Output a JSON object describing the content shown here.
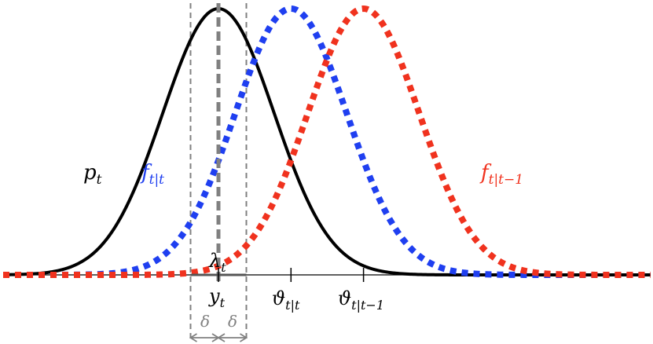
{
  "labels": {
    "p": {
      "main": "p",
      "sub": "t"
    },
    "f_filtered": {
      "main": "f",
      "sub": "t|t"
    },
    "f_predicted": {
      "main": "f",
      "sub": "t|t−1"
    },
    "lambda": {
      "main": "λ",
      "sub": "t"
    },
    "y": {
      "main": "y",
      "sub": "t"
    },
    "theta_filtered": {
      "main": "ϑ",
      "sub": "t|t"
    },
    "theta_predicted": {
      "main": "ϑ",
      "sub": "t|t−1"
    },
    "delta_left": "δ",
    "delta_right": "δ"
  },
  "curves": {
    "p": {
      "color": "#000000",
      "mean": 0.0,
      "sd": 1.0,
      "style": "solid"
    },
    "f_filtered": {
      "color": "#1f3ff0",
      "mean": 1.3,
      "sd": 1.0,
      "style": "dotted"
    },
    "f_predicted": {
      "color": "#f0321e",
      "mean": 2.6,
      "sd": 1.0,
      "style": "dotted"
    }
  },
  "markers": {
    "y": 0.0,
    "theta_filtered": 1.3,
    "theta_predicted": 2.6,
    "delta": 0.5
  },
  "colors": {
    "axis": "#000000",
    "interval": "#808080",
    "p": "#000000",
    "f_filtered": "#1f3ff0",
    "f_predicted": "#f0321e"
  }
}
